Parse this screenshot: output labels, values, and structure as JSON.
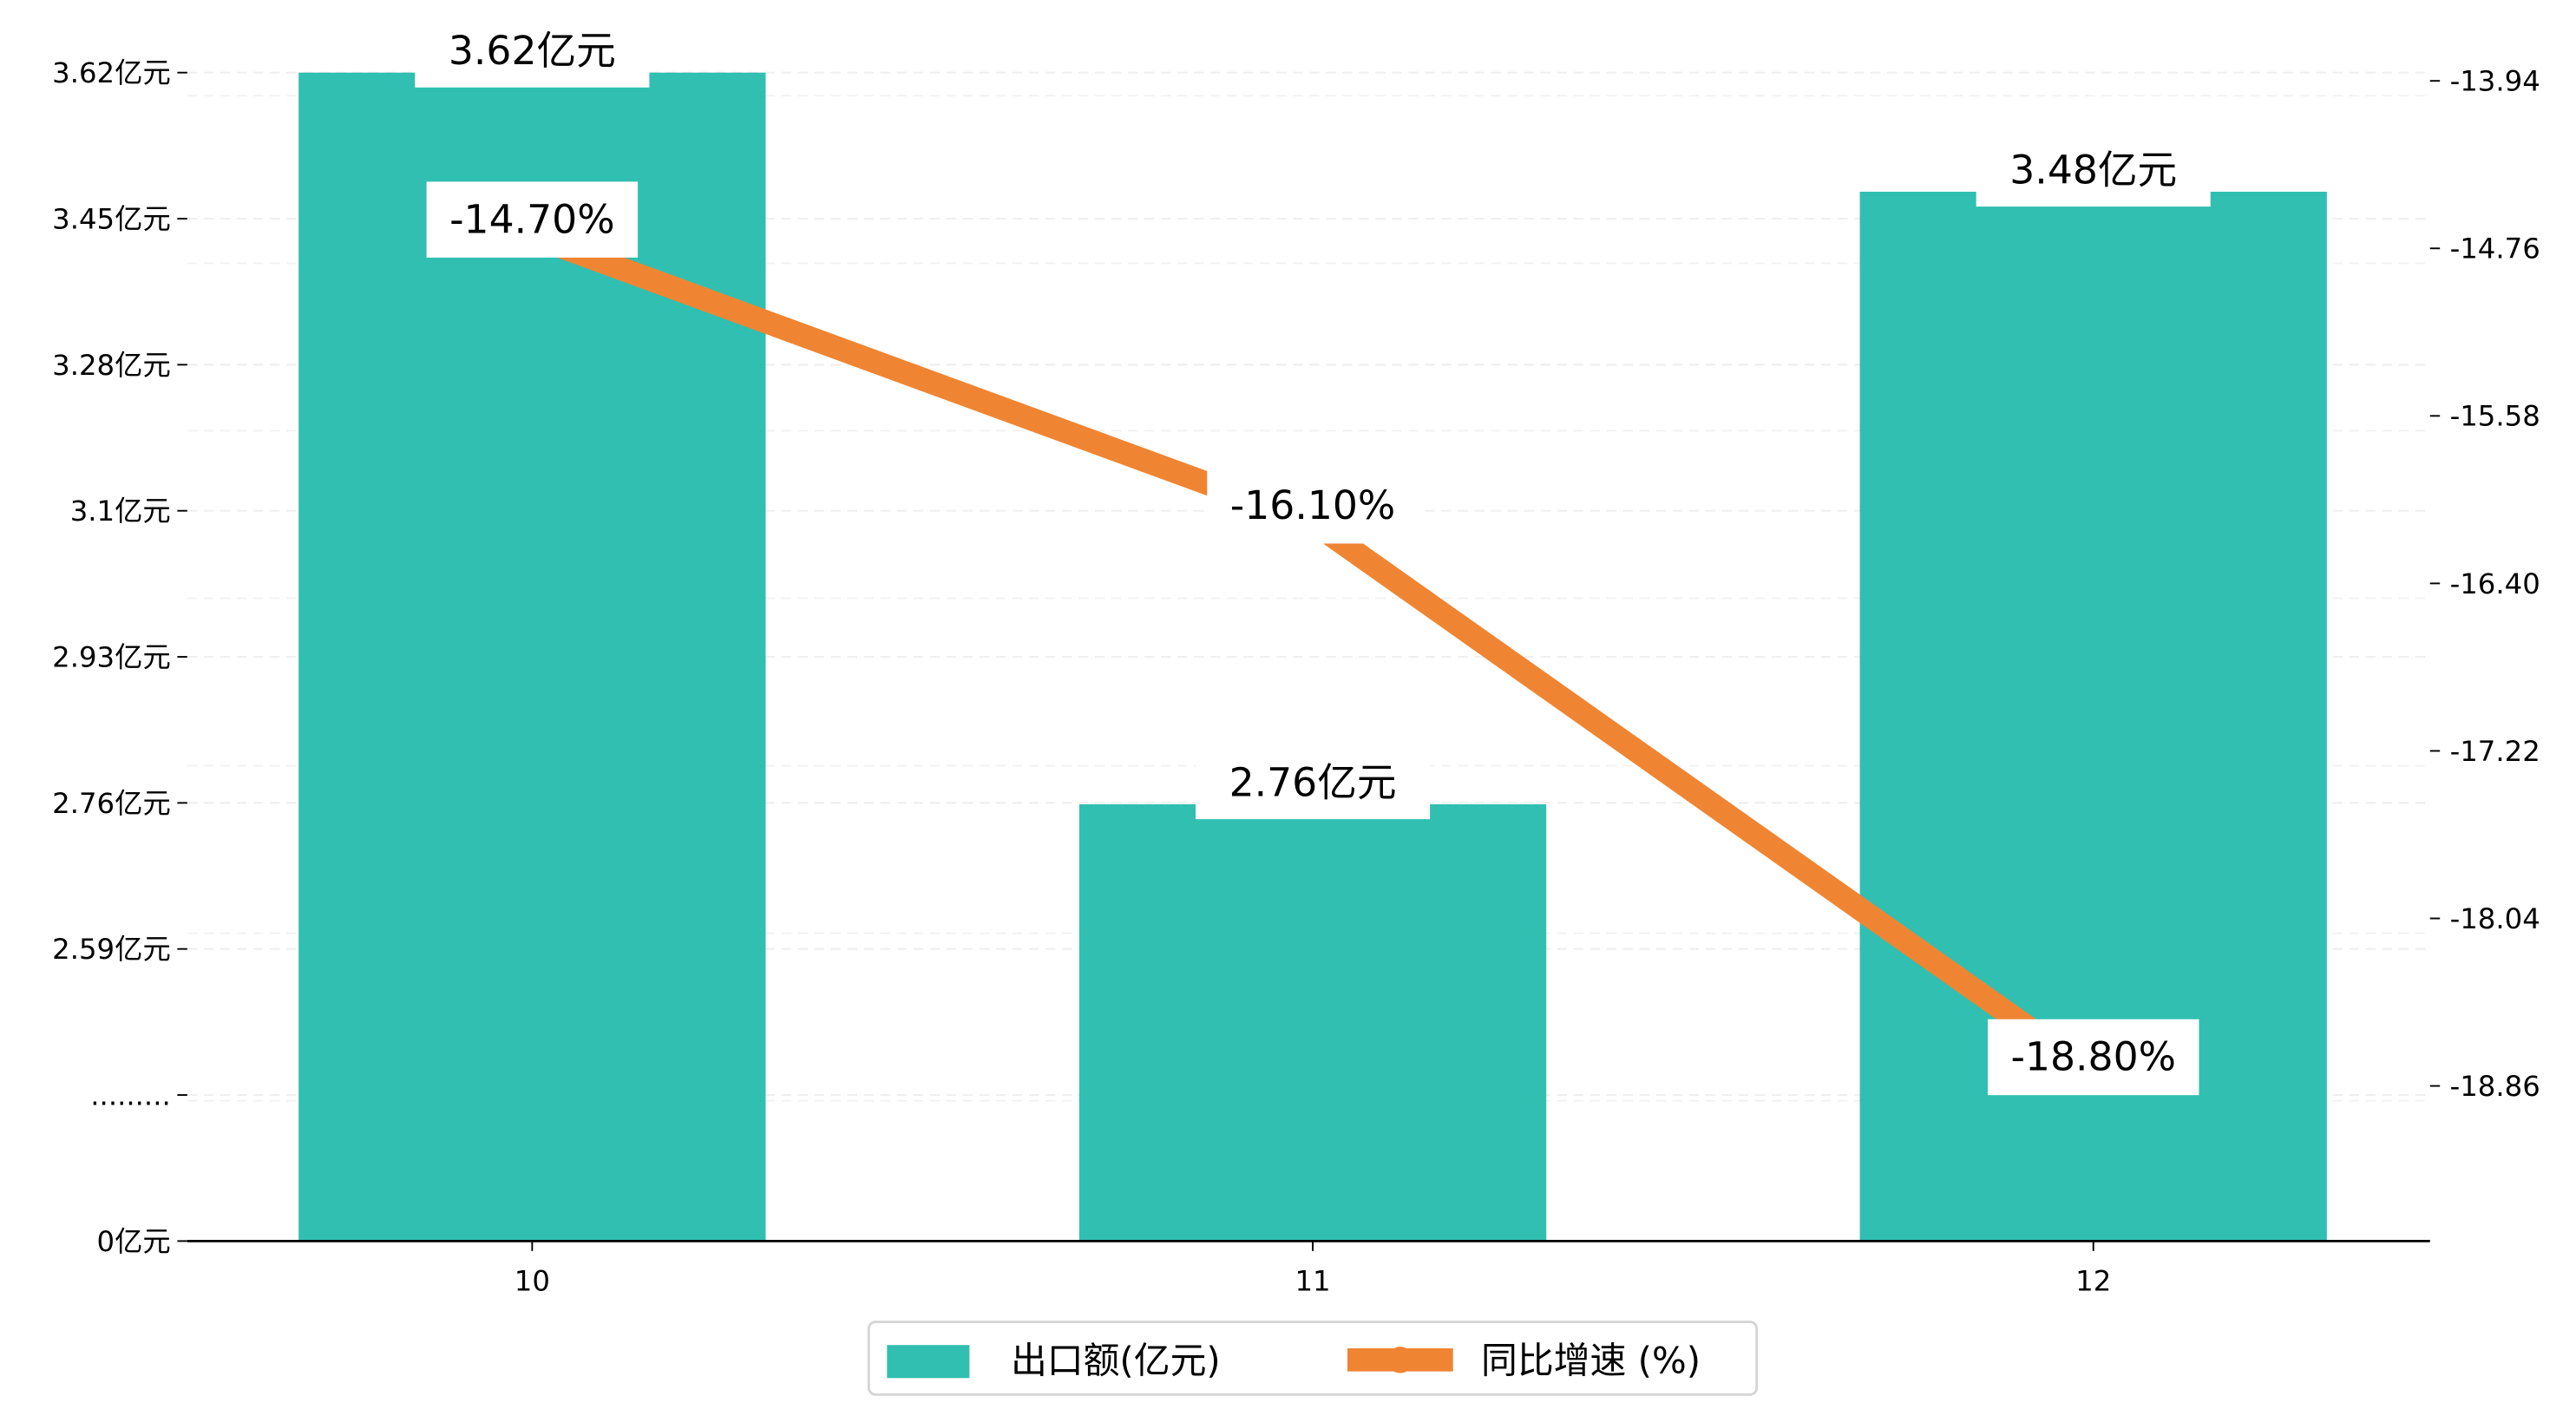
{
  "chart_data": {
    "type": "bar+line",
    "categories": [
      "10",
      "11",
      "12"
    ],
    "series": [
      {
        "name": "出口额(亿元)",
        "type": "bar",
        "axis": "left",
        "values": [
          3.62,
          2.76,
          3.48
        ],
        "labels": [
          "3.62亿元",
          "2.76亿元",
          "3.48亿元"
        ],
        "color": "#31bfb2"
      },
      {
        "name": "同比增速 (%)",
        "type": "line",
        "axis": "right",
        "values": [
          -14.7,
          -16.1,
          -18.8
        ],
        "labels": [
          "-14.70%",
          "-16.10%",
          "-18.80%"
        ],
        "color": "#ef8532"
      }
    ],
    "left_axis": {
      "ticks": [
        {
          "value": 3.62,
          "label": "3.62亿元"
        },
        {
          "value": 3.45,
          "label": "3.45亿元"
        },
        {
          "value": 3.28,
          "label": "3.28亿元"
        },
        {
          "value": 3.1,
          "label": "3.1亿元"
        },
        {
          "value": 2.93,
          "label": "2.93亿元"
        },
        {
          "value": 2.76,
          "label": "2.76亿元"
        },
        {
          "value": 2.59,
          "label": "2.59亿元"
        },
        {
          "value": null,
          "label": "........."
        },
        {
          "value": 0,
          "label": "0亿元"
        }
      ]
    },
    "right_axis": {
      "ticks": [
        "-13.94",
        "-14.76",
        "-15.58",
        "-16.40",
        "-17.22",
        "-18.04",
        "-18.86"
      ],
      "range": [
        -19.7,
        -13.94
      ]
    },
    "grid": true,
    "legend_position": "bottom-center",
    "title": "",
    "xlabel": "",
    "ylabel": ""
  }
}
